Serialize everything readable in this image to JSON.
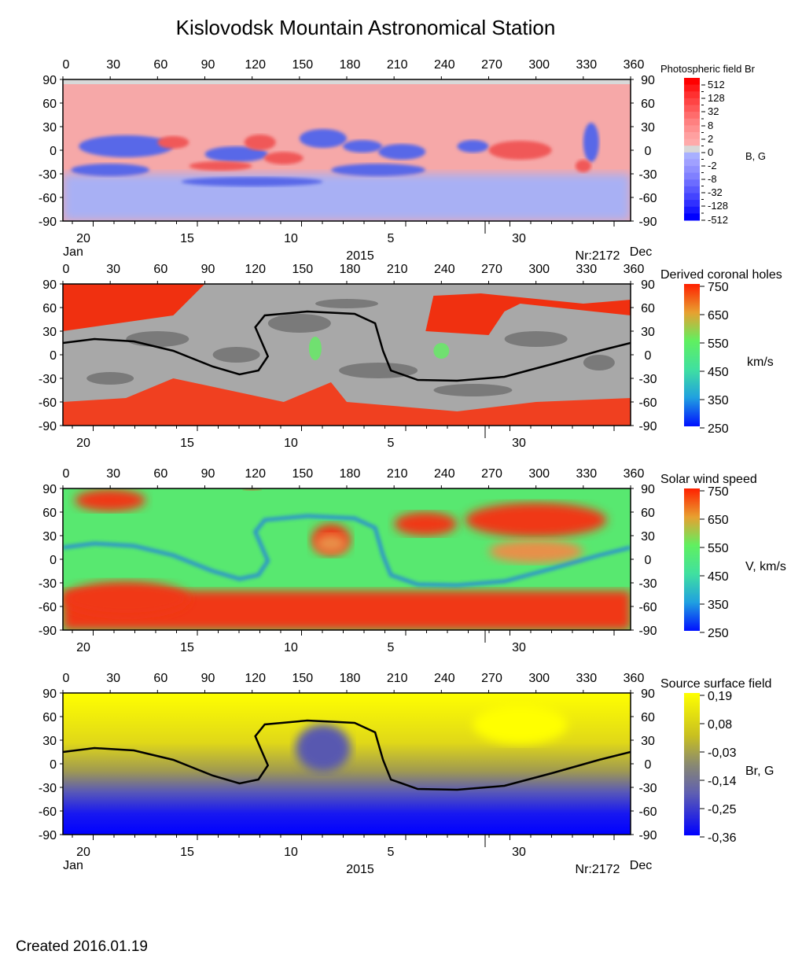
{
  "title": "Kislovodsk Mountain Astronomical Station",
  "created": "Created  2016.01.19",
  "chart_data": [
    {
      "type": "heatmap",
      "title": "Photospheric field Br",
      "colorbar_label": "B, G",
      "colorbar_ticks": [
        "512",
        "128",
        "32",
        "8",
        "2",
        "0",
        "-2",
        "-8",
        "-32",
        "-128",
        "-512"
      ],
      "colors": {
        "positive": "#ff0000",
        "negative": "#0000ff",
        "zero": "#d8d8d8"
      },
      "x_ticks_top": [
        "0",
        "30",
        "60",
        "90",
        "120",
        "150",
        "180",
        "210",
        "240",
        "270",
        "300",
        "330",
        "360"
      ],
      "y_ticks": [
        "90",
        "60",
        "30",
        "0",
        "-30",
        "-60",
        "-90"
      ],
      "date_ticks": [
        "20",
        "15",
        "10",
        "5",
        "30"
      ],
      "month_left": "Jan",
      "month_right": "Dec",
      "year": "2015",
      "rotation": "Nr:2172",
      "xlim": [
        0,
        360
      ],
      "ylim": [
        -90,
        90
      ]
    },
    {
      "type": "heatmap",
      "title": "Derived coronal holes",
      "colorbar_label": "km/s",
      "colorbar_ticks": [
        "750",
        "650",
        "550",
        "450",
        "350",
        "250"
      ],
      "x_ticks_top": [
        "0",
        "30",
        "60",
        "90",
        "120",
        "150",
        "180",
        "210",
        "240",
        "270",
        "300",
        "330",
        "360"
      ],
      "y_ticks": [
        "90",
        "60",
        "30",
        "0",
        "-30",
        "-60",
        "-90"
      ],
      "date_ticks": [
        "20",
        "15",
        "10",
        "5",
        "30"
      ],
      "neutral_line": [
        [
          0,
          15
        ],
        [
          20,
          20
        ],
        [
          45,
          17
        ],
        [
          70,
          5
        ],
        [
          95,
          -15
        ],
        [
          112,
          -25
        ],
        [
          124,
          -20
        ],
        [
          130,
          -2
        ],
        [
          122,
          35
        ],
        [
          128,
          50
        ],
        [
          155,
          55
        ],
        [
          185,
          52
        ],
        [
          198,
          40
        ],
        [
          203,
          5
        ],
        [
          208,
          -20
        ],
        [
          225,
          -32
        ],
        [
          250,
          -33
        ],
        [
          280,
          -28
        ],
        [
          310,
          -12
        ],
        [
          340,
          5
        ],
        [
          360,
          15
        ]
      ],
      "xlim": [
        0,
        360
      ],
      "ylim": [
        -90,
        90
      ]
    },
    {
      "type": "heatmap",
      "title": "Solar wind speed",
      "colorbar_label": "V, km/s",
      "colorbar_ticks": [
        "750",
        "650",
        "550",
        "450",
        "350",
        "250"
      ],
      "x_ticks_top": [
        "0",
        "30",
        "60",
        "90",
        "120",
        "150",
        "180",
        "210",
        "240",
        "270",
        "300",
        "330",
        "360"
      ],
      "y_ticks": [
        "90",
        "60",
        "30",
        "0",
        "-30",
        "-60",
        "-90"
      ],
      "date_ticks": [
        "20",
        "15",
        "10",
        "5",
        "30"
      ],
      "xlim": [
        0,
        360
      ],
      "ylim": [
        -90,
        90
      ]
    },
    {
      "type": "heatmap",
      "title": "Source surface field",
      "colorbar_label": "Br, G",
      "colorbar_ticks": [
        "0,19",
        "0,08",
        "-0,03",
        "-0,14",
        "-0,25",
        "-0,36"
      ],
      "x_ticks_top": [
        "0",
        "30",
        "60",
        "90",
        "120",
        "150",
        "180",
        "210",
        "240",
        "270",
        "300",
        "330",
        "360"
      ],
      "y_ticks": [
        "90",
        "60",
        "30",
        "0",
        "-30",
        "-60",
        "-90"
      ],
      "date_ticks": [
        "20",
        "15",
        "10",
        "5",
        "30"
      ],
      "month_left": "Jan",
      "month_right": "Dec",
      "year": "2015",
      "rotation": "Nr:2172",
      "neutral_line": [
        [
          0,
          15
        ],
        [
          20,
          20
        ],
        [
          45,
          17
        ],
        [
          70,
          5
        ],
        [
          95,
          -15
        ],
        [
          112,
          -25
        ],
        [
          124,
          -20
        ],
        [
          130,
          -2
        ],
        [
          122,
          35
        ],
        [
          128,
          50
        ],
        [
          155,
          55
        ],
        [
          185,
          52
        ],
        [
          198,
          40
        ],
        [
          203,
          5
        ],
        [
          208,
          -20
        ],
        [
          225,
          -32
        ],
        [
          250,
          -33
        ],
        [
          280,
          -28
        ],
        [
          310,
          -12
        ],
        [
          340,
          5
        ],
        [
          360,
          15
        ]
      ],
      "xlim": [
        0,
        360
      ],
      "ylim": [
        -90,
        90
      ]
    }
  ]
}
